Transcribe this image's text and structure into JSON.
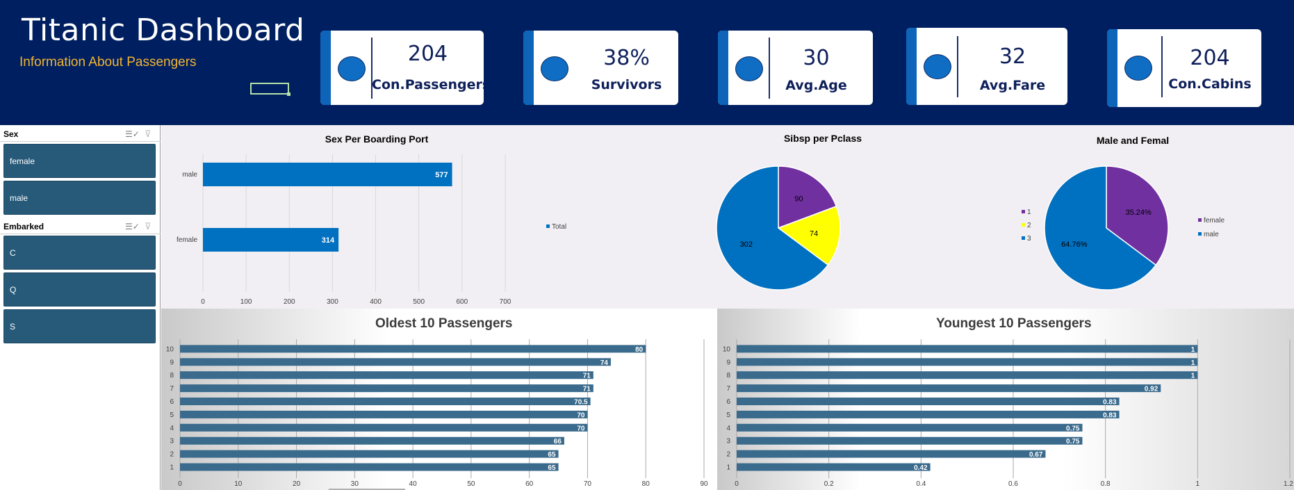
{
  "header": {
    "title": "Titanic Dashboard",
    "subtitle": "Information About Passengers"
  },
  "kpis": [
    {
      "value": "204",
      "label": "Con.Passengers"
    },
    {
      "value": "38%",
      "label": "Survivors"
    },
    {
      "value": "30",
      "label": "Avg.Age"
    },
    {
      "value": "32",
      "label": "Avg.Fare"
    },
    {
      "value": "204",
      "label": "Con.Cabins"
    }
  ],
  "slicers": {
    "sex": {
      "title": "Sex",
      "items": [
        "female",
        "male"
      ]
    },
    "embarked": {
      "title": "Embarked",
      "items": [
        "C",
        "Q",
        "S"
      ]
    }
  },
  "colors": {
    "header_bg": "#001f60",
    "accent": "#0d64b8",
    "subtitle": "#f2b531",
    "slicer": "#275a79",
    "bar_bottom": "#3a6a8c",
    "purple": "#7030a0",
    "yellow": "#ffff00",
    "blue": "#0070c0"
  },
  "chart_data": [
    {
      "type": "bar",
      "title": "Sex Per Boarding Port",
      "orientation": "horizontal",
      "categories": [
        "male",
        "female"
      ],
      "series": [
        {
          "name": "Total",
          "values": [
            577,
            314
          ]
        }
      ],
      "xlim": [
        0,
        700
      ],
      "xticks": [
        0,
        100,
        200,
        300,
        400,
        500,
        600,
        700
      ],
      "grid": true,
      "legend": "right"
    },
    {
      "type": "pie",
      "title": "Sibsp per Pclass",
      "labels": [
        "1",
        "2",
        "3"
      ],
      "values": [
        90,
        74,
        302
      ],
      "data_labels": [
        "90",
        "74",
        "302"
      ],
      "colors": [
        "#7030a0",
        "#ffff00",
        "#0070c0"
      ],
      "legend": "right"
    },
    {
      "type": "pie",
      "title": "Male and Femal",
      "labels": [
        "female",
        "male"
      ],
      "values": [
        35.24,
        64.76
      ],
      "data_labels": [
        "35.24%",
        "64.76%"
      ],
      "colors": [
        "#7030a0",
        "#0070c0"
      ],
      "legend": "right"
    },
    {
      "type": "bar",
      "title": "Oldest 10 Passengers",
      "orientation": "horizontal",
      "categories": [
        "1",
        "2",
        "3",
        "4",
        "5",
        "6",
        "7",
        "8",
        "9",
        "10"
      ],
      "values": [
        65,
        65,
        66,
        70,
        70,
        70.5,
        71,
        71,
        74,
        80
      ],
      "xlim": [
        0,
        90
      ],
      "xticks": [
        0,
        10,
        20,
        30,
        40,
        50,
        60,
        70,
        80,
        90
      ]
    },
    {
      "type": "bar",
      "title": "Youngest  10 Passengers",
      "orientation": "horizontal",
      "categories": [
        "1",
        "2",
        "3",
        "4",
        "5",
        "6",
        "7",
        "8",
        "9",
        "10"
      ],
      "values": [
        0.42,
        0.67,
        0.75,
        0.75,
        0.83,
        0.83,
        0.92,
        1,
        1,
        1
      ],
      "xlim": [
        0,
        1.2
      ],
      "xticks": [
        "0",
        "0.2",
        "0.4",
        "0.6",
        "0.8",
        "1",
        "1.2"
      ]
    }
  ]
}
